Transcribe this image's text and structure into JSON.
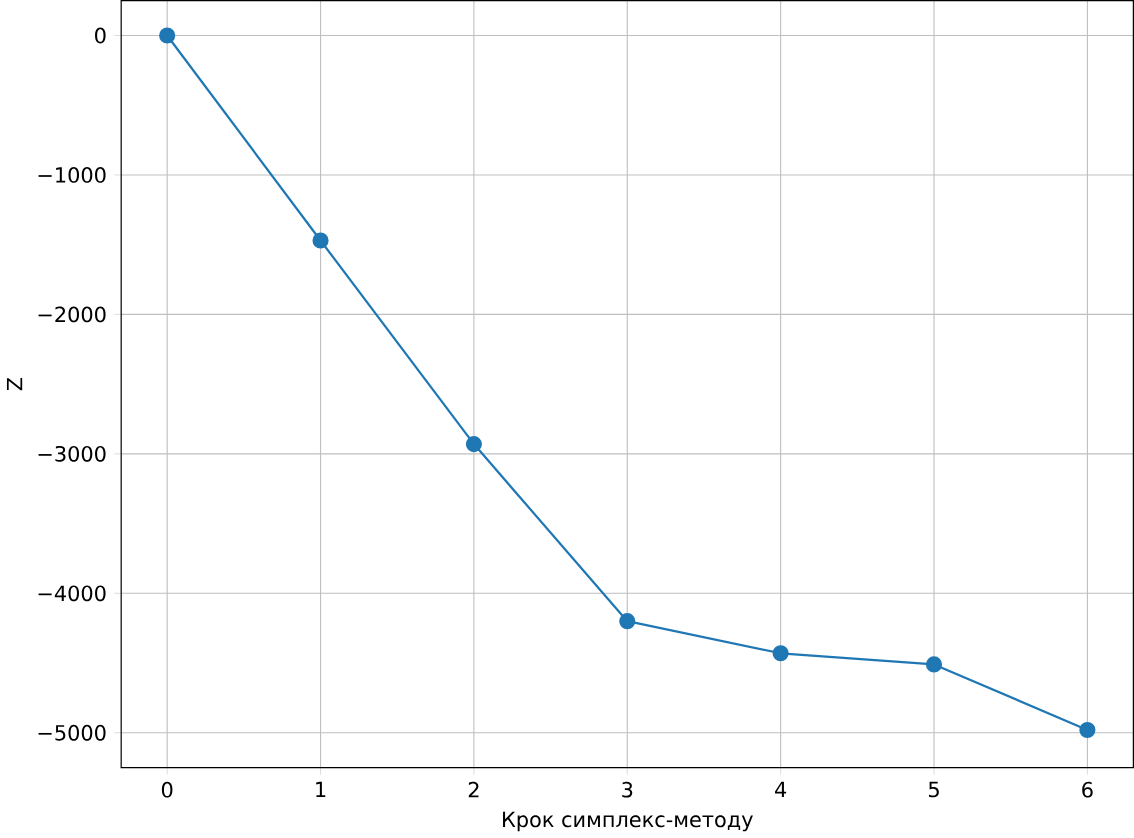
{
  "chart_data": {
    "type": "line",
    "xlabel": "Крок симплекс-методу",
    "ylabel": "Z",
    "x": [
      0,
      1,
      2,
      3,
      4,
      5,
      6
    ],
    "series": [
      {
        "color": "#1f77b4",
        "values": [
          0,
          -1470,
          -2930,
          -4200,
          -4430,
          -4510,
          -4980
        ]
      }
    ],
    "xlim": [
      -0.3,
      6.3
    ],
    "ylim": [
      -5250,
      250
    ],
    "xticks": [
      0,
      1,
      2,
      3,
      4,
      5,
      6
    ],
    "yticks": [
      {
        "value": -5000,
        "label": "−5000"
      },
      {
        "value": -4000,
        "label": "−4000"
      },
      {
        "value": -3000,
        "label": "−3000"
      },
      {
        "value": -2000,
        "label": "−2000"
      },
      {
        "value": -1000,
        "label": "−1000"
      },
      0
    ],
    "grid": true,
    "marker": "circle",
    "line_style": "solid"
  }
}
